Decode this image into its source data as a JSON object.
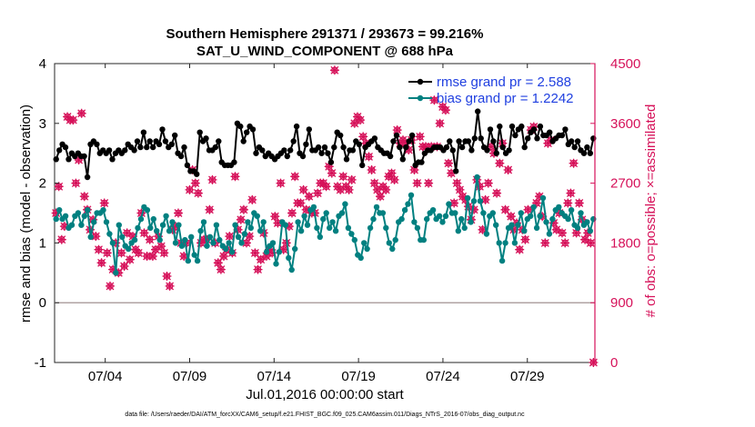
{
  "chart_data": {
    "type": "line",
    "title": "Southern Hemisphere 291371 / 293673 = 99.216%",
    "subtitle": "SAT_U_WIND_COMPONENT @ 688 hPa",
    "xlabel": "Jul.01,2016 00:00:00 start",
    "ylabel_left": "rmse and bias (model - observation)",
    "ylabel_right": "# of obs: o=possible; ×=assimilated",
    "x_ticks": [
      "07/04",
      "07/09",
      "07/14",
      "07/19",
      "07/24",
      "07/29"
    ],
    "x_tick_days": [
      4,
      9,
      14,
      19,
      24,
      29
    ],
    "xlim": [
      1,
      33
    ],
    "y_left_ticks": [
      "-1",
      "0",
      "1",
      "2",
      "3",
      "4"
    ],
    "y_left_tick_values": [
      -1,
      0,
      1,
      2,
      3,
      4
    ],
    "ylim_left": [
      -1,
      4
    ],
    "y_right_ticks": [
      "0",
      "900",
      "1800",
      "2700",
      "3600",
      "4500"
    ],
    "y_right_tick_values": [
      0,
      900,
      1800,
      2700,
      3600,
      4500
    ],
    "ylim_right": [
      0,
      4500
    ],
    "zero_line": 0,
    "colors": {
      "rmse": "#000000",
      "bias": "#008080",
      "obs": "#d6125a",
      "right_axis": "#d6125a"
    },
    "series": [
      {
        "name": "rmse grand pr = 2.588",
        "axis": "left",
        "values": [
          2.4,
          2.55,
          2.65,
          2.6,
          2.4,
          2.5,
          2.45,
          2.5,
          2.45,
          2.45,
          2.1,
          2.65,
          2.7,
          2.65,
          2.5,
          2.55,
          2.5,
          2.55,
          2.4,
          2.5,
          2.55,
          2.5,
          2.55,
          2.65,
          2.6,
          2.55,
          2.7,
          2.6,
          2.85,
          2.6,
          2.7,
          2.6,
          2.7,
          2.65,
          2.9,
          2.7,
          2.6,
          2.65,
          2.8,
          2.5,
          2.45,
          2.6,
          2.3,
          2.2,
          2.2,
          2.15,
          2.85,
          2.7,
          2.75,
          2.55,
          2.55,
          2.6,
          2.7,
          2.35,
          2.3,
          2.3,
          2.3,
          2.35,
          3.0,
          2.95,
          2.7,
          2.85,
          2.95,
          2.9,
          2.5,
          2.6,
          2.55,
          2.45,
          2.5,
          2.45,
          2.4,
          2.45,
          2.5,
          2.55,
          2.45,
          2.55,
          2.7,
          2.95,
          2.5,
          2.45,
          2.65,
          2.9,
          2.55,
          2.55,
          2.6,
          2.5,
          2.6,
          2.5,
          2.35,
          2.6,
          2.85,
          2.8,
          2.6,
          2.4,
          2.55,
          2.55,
          2.7,
          2.65,
          2.3,
          2.6,
          2.65,
          2.7,
          2.75,
          2.6,
          2.55,
          2.5,
          2.5,
          2.45,
          2.7,
          2.8,
          2.6,
          2.4,
          2.6,
          2.7,
          2.8,
          2.3,
          2.35,
          2.35,
          2.5,
          2.55,
          2.55,
          2.6,
          2.6,
          2.6,
          2.55,
          2.6,
          2.7,
          2.55,
          2.2,
          2.7,
          2.6,
          2.7,
          2.7,
          2.55,
          2.75,
          3.2,
          2.75,
          2.6,
          2.55,
          2.9,
          2.7,
          2.5,
          2.95,
          2.6,
          2.5,
          2.55,
          2.95,
          2.8,
          2.9,
          2.95,
          2.6,
          2.75,
          2.85,
          2.9,
          2.75,
          2.95,
          2.8,
          2.8,
          2.85,
          2.7,
          2.75,
          2.8,
          2.8,
          2.9,
          2.65,
          2.7,
          2.6,
          2.7,
          2.55,
          2.5,
          2.6,
          2.5,
          2.75
        ]
      },
      {
        "name": "bias grand pr = 1.2242",
        "axis": "left",
        "values": [
          1.4,
          1.55,
          1.4,
          1.45,
          1.25,
          1.3,
          1.45,
          1.5,
          1.3,
          1.45,
          1.55,
          1.1,
          1.35,
          1.5,
          1.5,
          1.55,
          1.35,
          1.15,
          1.0,
          0.5,
          1.3,
          1.1,
          0.95,
          0.9,
          1.0,
          1.05,
          1.25,
          1.4,
          1.6,
          1.55,
          1.25,
          1.4,
          1.2,
          1.05,
          1.3,
          1.45,
          1.2,
          1.35,
          1.0,
          1.3,
          0.95,
          1.05,
          0.7,
          1.1,
          0.8,
          0.7,
          1.2,
          1.35,
          0.95,
          1.1,
          1.0,
          1.3,
          1.05,
          0.95,
          0.9,
          1.0,
          0.85,
          1.3,
          1.1,
          1.0,
          1.15,
          1.35,
          1.25,
          1.5,
          1.45,
          1.2,
          1.35,
          0.85,
          0.95,
          1.0,
          0.65,
          0.85,
          1.35,
          1.3,
          0.75,
          0.55,
          0.9,
          1.35,
          1.2,
          1.45,
          1.3,
          1.55,
          1.6,
          1.25,
          1.1,
          1.4,
          1.5,
          1.25,
          1.35,
          1.2,
          1.45,
          1.5,
          1.65,
          1.25,
          1.15,
          1.05,
          0.8,
          0.75,
          1.0,
          0.9,
          1.25,
          1.4,
          1.6,
          1.5,
          1.5,
          1.25,
          1.0,
          0.9,
          1.05,
          1.35,
          1.4,
          1.55,
          1.65,
          1.8,
          1.35,
          1.25,
          1.05,
          1.05,
          1.4,
          1.5,
          1.55,
          1.4,
          1.45,
          1.35,
          1.45,
          1.65,
          1.5,
          1.5,
          1.2,
          1.4,
          1.25,
          1.75,
          1.35,
          1.7,
          2.1,
          1.7,
          1.5,
          1.15,
          1.45,
          1.5,
          1.3,
          1.0,
          0.7,
          1.0,
          1.25,
          1.3,
          1.0,
          1.3,
          1.5,
          1.2,
          1.4,
          1.45,
          1.6,
          1.25,
          1.45,
          1.75,
          1.35,
          1.15,
          1.4,
          1.55,
          1.6,
          1.5,
          1.45,
          1.4,
          1.55,
          1.3,
          1.25,
          1.5,
          1.3,
          1.35,
          1.2,
          1.4
        ]
      },
      {
        "name": "obs possible / assimilated",
        "axis": "right",
        "style": "markers",
        "values": [
          2250,
          2650,
          1850,
          2050,
          3700,
          3650,
          3650,
          2700,
          3050,
          3750,
          2500,
          2300,
          2000,
          2150,
          1900,
          1700,
          1500,
          2400,
          1650,
          1150,
          1400,
          1800,
          1350,
          1650,
          1450,
          1950,
          1550,
          1900,
          1700,
          1650,
          2250,
          1950,
          1600,
          1850,
          1600,
          1700,
          1900,
          1750,
          1650,
          1300,
          1150,
          2000,
          2050,
          2250,
          1800,
          1600,
          1800,
          2600,
          2900,
          2700,
          2550,
          1800,
          1850,
          1850,
          2300,
          2750,
          1800,
          1500,
          1400,
          1600,
          1700,
          1900,
          1650,
          2800,
          2000,
          2150,
          2300,
          1800,
          1900,
          2450,
          1650,
          1400,
          1550,
          1950,
          1600,
          1700,
          1650,
          2200,
          2100,
          2700,
          1700,
          1800,
          2050,
          2250,
          2800,
          2400,
          2400,
          2600,
          2300,
          2500,
          2250,
          2250,
          2550,
          2700,
          2700,
          2650,
          2950,
          2850,
          4400,
          2650,
          2600,
          2800,
          2650,
          2600,
          2750,
          3600,
          3700,
          3650,
          3400,
          3300,
          3100,
          2900,
          2700,
          2600,
          2500,
          2650,
          2600,
          2800,
          2850,
          2750,
          3500,
          3300,
          3350,
          3300,
          3200,
          3350,
          2900,
          2700,
          3400,
          3250,
          3250,
          2700,
          3250,
          3950,
          3250,
          3600,
          3850,
          3800,
          3000,
          2850,
          2400,
          2700,
          2600,
          2500,
          2450,
          2350,
          2150,
          2300,
          2750,
          2650,
          2000,
          2450,
          2700,
          3250,
          3150,
          2550,
          3000,
          3300,
          2300,
          2900,
          2200,
          2000,
          2100,
          1700,
          2000,
          1850,
          2300,
          3500,
          3550,
          2400,
          2500,
          2200,
          1800,
          3300,
          3350,
          2100,
          2000,
          2250,
          1950,
          1800,
          2400,
          2550,
          3000,
          1950,
          2400,
          2150,
          1850,
          1950,
          1800,
          0
        ]
      }
    ],
    "legend": [
      "rmse grand pr = 2.588",
      "bias grand pr = 1.2242"
    ],
    "legend_position": "top-right",
    "footer": "data file: /Users/raeder/DAI/ATM_forcXX/CAM6_setup/f.e21.FHIST_BGC.f09_025.CAM6assim.011/Diags_NTrS_2016-07/obs_diag_output.nc"
  }
}
